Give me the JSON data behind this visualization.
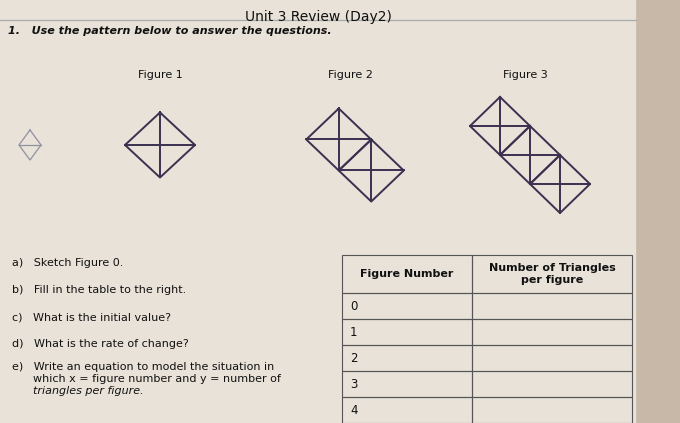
{
  "title": "Unit 3 Review (Day2)",
  "instruction": "1.   Use the pattern below to answer the questions.",
  "figure_labels": [
    "Figure 1",
    "Figure 2",
    "Figure 3"
  ],
  "questions_a": "a)   Sketch Figure 0.",
  "questions_b": "b)   Fill in the table to the right.",
  "questions_c": "c)   What is the initial value?",
  "questions_d": "d)   What is the rate of change?",
  "questions_e1": "e)   Write an equation to model the situation in",
  "questions_e2": "      which x = figure number and y = number of",
  "questions_e3": "      triangles per figure.",
  "table_header1": "Figure Number",
  "table_header2": "Number of Triangles\nper figure",
  "table_rows": [
    "0",
    "1",
    "2",
    "3",
    "4"
  ],
  "bg_color": "#c8b8a8",
  "paper_color": "#e8e2d8",
  "line_color": "#3a3050",
  "fig0_color": "#9090a0",
  "text_color": "#111111",
  "table_line_color": "#555555"
}
